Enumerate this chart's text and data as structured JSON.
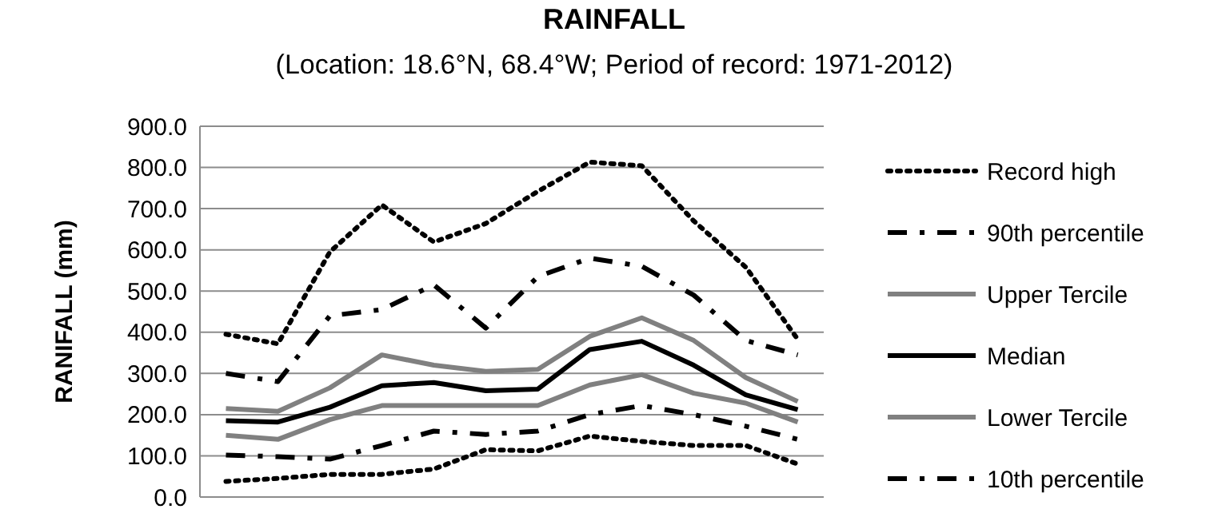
{
  "chart_data": {
    "type": "line",
    "title": "RAINFALL",
    "subtitle": "(Location: 18.6°N, 68.4°W; Period of record: 1971-2012)",
    "ylabel": "RANIFALL (mm)",
    "categories": [
      null,
      null,
      null,
      null,
      null,
      null,
      null,
      null,
      null,
      null,
      null,
      null
    ],
    "ylim": [
      0,
      900
    ],
    "yticks": [
      {
        "value": 0,
        "label": "0.0"
      },
      {
        "value": 100,
        "label": "100.0"
      },
      {
        "value": 200,
        "label": "200.0"
      },
      {
        "value": 300,
        "label": "300.0"
      },
      {
        "value": 400,
        "label": "400.0"
      },
      {
        "value": 500,
        "label": "500.0"
      },
      {
        "value": 600,
        "label": "600.0"
      },
      {
        "value": 700,
        "label": "700.0"
      },
      {
        "value": 800,
        "label": "800.0"
      },
      {
        "value": 900,
        "label": "900.0"
      }
    ],
    "grid": "y",
    "legend": "right",
    "series": [
      {
        "name": "Record high",
        "color": "#000000",
        "line_style": "dotted",
        "values": [
          395,
          372,
          595,
          709,
          619,
          664,
          742,
          813,
          804,
          670,
          558,
          383
        ]
      },
      {
        "name": "90th percentile",
        "color": "#000000",
        "line_style": "dashed",
        "values": [
          300,
          280,
          440,
          455,
          515,
          410,
          535,
          580,
          560,
          490,
          380,
          345
        ]
      },
      {
        "name": "Upper Tercile",
        "color": "#808080",
        "line_style": "solid",
        "values": [
          215,
          208,
          265,
          345,
          320,
          305,
          310,
          390,
          435,
          380,
          290,
          232
        ]
      },
      {
        "name": "Median",
        "color": "#000000",
        "line_style": "solid",
        "values": [
          185,
          182,
          218,
          270,
          278,
          258,
          262,
          358,
          378,
          320,
          248,
          212
        ]
      },
      {
        "name": "Lower Tercile",
        "color": "#808080",
        "line_style": "solid",
        "values": [
          150,
          140,
          188,
          222,
          222,
          222,
          222,
          272,
          297,
          252,
          228,
          182
        ]
      },
      {
        "name": "10th percentile",
        "color": "#000000",
        "line_style": "dashed",
        "values": [
          102,
          98,
          92,
          125,
          160,
          152,
          160,
          200,
          222,
          200,
          172,
          140
        ]
      },
      {
        "color": "#000000",
        "line_style": "dotted",
        "values": [
          38,
          45,
          55,
          55,
          68,
          115,
          112,
          148,
          135,
          125,
          125,
          80
        ]
      }
    ]
  }
}
